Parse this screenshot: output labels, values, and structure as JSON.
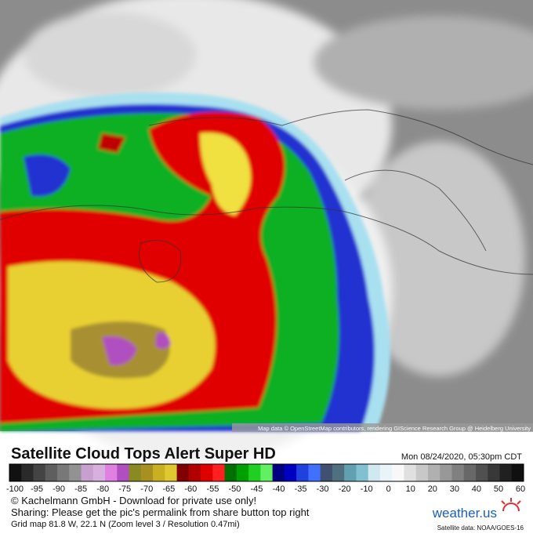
{
  "map": {
    "attribution": "Map data © OpenStreetMap contributors, rendering GIScience Research Group @ Heidelberg University"
  },
  "header": {
    "title": "Satellite Cloud Tops Alert Super HD",
    "timestamp": "Mon 08/24/2020, 05:30pm CDT"
  },
  "colorbar": {
    "ticks": [
      -100,
      -95,
      -90,
      -85,
      -80,
      -75,
      -70,
      -65,
      -60,
      -55,
      -50,
      -45,
      -40,
      -35,
      -30,
      -20,
      -10,
      0,
      10,
      20,
      30,
      40,
      50,
      60
    ],
    "colors": [
      "#111111",
      "#2a2a2a",
      "#444444",
      "#5e5e5e",
      "#787878",
      "#929292",
      "#c8a0d0",
      "#d8b0e0",
      "#e080e0",
      "#b050c0",
      "#8a8a20",
      "#a89020",
      "#c8b020",
      "#e0c830",
      "#800000",
      "#b00000",
      "#e00000",
      "#ff2020",
      "#007000",
      "#00a000",
      "#20d020",
      "#60f060",
      "#000080",
      "#0000c0",
      "#2040e0",
      "#4070ff",
      "#405070",
      "#507080",
      "#60a0b0",
      "#80c0d0",
      "#d0e8f0",
      "#e8f4f8",
      "#f8f8f8",
      "#e0e0e0",
      "#c8c8c8",
      "#b0b0b0",
      "#989898",
      "#808080",
      "#686868",
      "#505050",
      "#383838",
      "#202020",
      "#101010"
    ]
  },
  "footer": {
    "copyright": "© Kachelmann GmbH - Download for private use only!",
    "sharing": "Sharing: Please get the pic's permalink from share button top right",
    "grid": "Grid map 81.8 W, 22.1 N (Zoom level 3 / Resolution 0.47mi)",
    "logo": "weather.us",
    "source": "Satellite data: NOAA/GOES-16"
  }
}
